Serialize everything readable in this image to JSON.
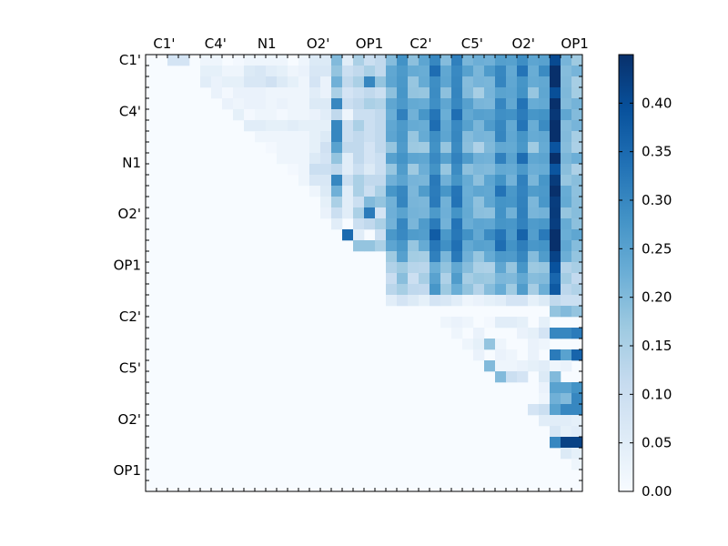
{
  "chart_data": {
    "type": "heatmap",
    "title": "",
    "xlabel": "",
    "ylabel": "",
    "colormap": "Blues",
    "colormap_min_color": "#f7fbff",
    "colormap_max_color": "#08306b",
    "x_tick_labels": [
      "C1'",
      "C4'",
      "N1",
      "O2'",
      "OP1",
      "C2'",
      "C5'",
      "O2'",
      "OP1"
    ],
    "y_tick_labels": [
      "C1'",
      "C4'",
      "N1",
      "O2'",
      "OP1",
      "C2'",
      "C5'",
      "O2'",
      "OP1"
    ],
    "tick_label_position": "top",
    "colorbar": {
      "min": 0.0,
      "max": 0.45,
      "tick_labels": [
        "0.00",
        "0.05",
        "0.10",
        "0.15",
        "0.20",
        "0.25",
        "0.30",
        "0.35",
        "0.40"
      ]
    },
    "n_rows": 40,
    "n_cols": 40,
    "values_note_units": "value",
    "sections": {
      "upper_left_block": {
        "rows": [
          0,
          17
        ],
        "cols": [
          1,
          16
        ],
        "values": [
          [
            0.0,
            0.08,
            0.08,
            0.0,
            0.02,
            0.02,
            0.0,
            0.01,
            0.02,
            0.02,
            0.02,
            0.02,
            0.0,
            0.02,
            0.06,
            0.06
          ],
          [
            0.0,
            0.0,
            0.0,
            0.0,
            0.04,
            0.04,
            0.02,
            0.02,
            0.06,
            0.07,
            0.05,
            0.04,
            0.02,
            0.03,
            0.07,
            0.07
          ],
          [
            0.0,
            0.0,
            0.0,
            0.0,
            0.05,
            0.03,
            0.04,
            0.04,
            0.07,
            0.07,
            0.09,
            0.06,
            0.04,
            0.02,
            0.08,
            0.03
          ],
          [
            0.0,
            0.0,
            0.0,
            0.0,
            0.0,
            0.03,
            0.01,
            0.03,
            0.03,
            0.03,
            0.02,
            0.02,
            0.02,
            0.02,
            0.05,
            0.03
          ],
          [
            0.0,
            0.0,
            0.0,
            0.0,
            0.0,
            0.0,
            0.03,
            0.02,
            0.03,
            0.03,
            0.02,
            0.03,
            0.02,
            0.02,
            0.06,
            0.06
          ],
          [
            0.0,
            0.0,
            0.0,
            0.0,
            0.0,
            0.0,
            0.0,
            0.04,
            0.01,
            0.02,
            0.02,
            0.01,
            0.02,
            0.02,
            0.03,
            0.05
          ],
          [
            0.0,
            0.0,
            0.0,
            0.0,
            0.0,
            0.0,
            0.0,
            0.0,
            0.05,
            0.05,
            0.04,
            0.04,
            0.05,
            0.04,
            0.04,
            0.04
          ],
          [
            0.0,
            0.0,
            0.0,
            0.0,
            0.0,
            0.0,
            0.0,
            0.0,
            0.0,
            0.02,
            0.02,
            0.02,
            0.02,
            0.02,
            0.04,
            0.06
          ],
          [
            0.0,
            0.0,
            0.0,
            0.0,
            0.0,
            0.0,
            0.0,
            0.0,
            0.0,
            0.0,
            0.01,
            0.02,
            0.02,
            0.02,
            0.04,
            0.09
          ],
          [
            0.0,
            0.0,
            0.0,
            0.0,
            0.0,
            0.0,
            0.0,
            0.0,
            0.0,
            0.0,
            0.0,
            0.02,
            0.02,
            0.02,
            0.06,
            0.08
          ],
          [
            0.0,
            0.0,
            0.0,
            0.0,
            0.0,
            0.0,
            0.0,
            0.0,
            0.0,
            0.0,
            0.0,
            0.0,
            0.01,
            0.02,
            0.1,
            0.1
          ],
          [
            0.0,
            0.0,
            0.0,
            0.0,
            0.0,
            0.0,
            0.0,
            0.0,
            0.0,
            0.0,
            0.0,
            0.0,
            0.0,
            0.02,
            0.07,
            0.07
          ],
          [
            0.0,
            0.0,
            0.0,
            0.0,
            0.0,
            0.0,
            0.0,
            0.0,
            0.0,
            0.0,
            0.0,
            0.0,
            0.0,
            0.0,
            0.02,
            0.06
          ],
          [
            0.0,
            0.0,
            0.0,
            0.0,
            0.0,
            0.0,
            0.0,
            0.0,
            0.0,
            0.0,
            0.0,
            0.0,
            0.0,
            0.0,
            0.0,
            0.04
          ],
          [
            0.0,
            0.0,
            0.0,
            0.0,
            0.0,
            0.0,
            0.0,
            0.0,
            0.0,
            0.0,
            0.0,
            0.0,
            0.0,
            0.0,
            0.0,
            0.03
          ],
          [
            0.0,
            0.0,
            0.0,
            0.0,
            0.0,
            0.0,
            0.0,
            0.0,
            0.0,
            0.0,
            0.0,
            0.0,
            0.0,
            0.0,
            0.0,
            0.0
          ],
          [
            0.0,
            0.0,
            0.0,
            0.0,
            0.0,
            0.0,
            0.0,
            0.0,
            0.0,
            0.0,
            0.0,
            0.0,
            0.0,
            0.0,
            0.0,
            0.0
          ]
        ]
      },
      "op1_band": {
        "rows": [
          0,
          20
        ],
        "cols": [
          17,
          21
        ],
        "values": [
          [
            0.2,
            0.05,
            0.15,
            0.1,
            0.12
          ],
          [
            0.18,
            0.1,
            0.12,
            0.15,
            0.12
          ],
          [
            0.22,
            0.12,
            0.15,
            0.3,
            0.18
          ],
          [
            0.15,
            0.08,
            0.1,
            0.12,
            0.1
          ],
          [
            0.3,
            0.1,
            0.12,
            0.15,
            0.14
          ],
          [
            0.12,
            0.02,
            0.1,
            0.1,
            0.12
          ],
          [
            0.3,
            0.1,
            0.15,
            0.1,
            0.12
          ],
          [
            0.3,
            0.1,
            0.12,
            0.1,
            0.12
          ],
          [
            0.25,
            0.12,
            0.12,
            0.08,
            0.12
          ],
          [
            0.18,
            0.05,
            0.12,
            0.08,
            0.1
          ],
          [
            0.12,
            0.05,
            0.1,
            0.06,
            0.1
          ],
          [
            0.3,
            0.1,
            0.15,
            0.12,
            0.12
          ],
          [
            0.22,
            0.05,
            0.15,
            0.1,
            0.15
          ],
          [
            0.15,
            0.05,
            0.1,
            0.2,
            0.18
          ],
          [
            0.1,
            0.05,
            0.15,
            0.32,
            0.08
          ],
          [
            0.05,
            0.0,
            0.1,
            0.12,
            0.15
          ],
          [
            0.0,
            0.35,
            0.05,
            0.0,
            0.1
          ],
          [
            0.0,
            0.0,
            0.18,
            0.18,
            0.15
          ],
          [
            0.0,
            0.0,
            0.0,
            0.0,
            0.0
          ],
          [
            0.0,
            0.0,
            0.0,
            0.0,
            0.0
          ]
        ]
      },
      "upper_right_block": {
        "rows": [
          0,
          22
        ],
        "cols": [
          22,
          39
        ],
        "column_means": [
          0.22,
          0.27,
          0.2,
          0.22,
          0.3,
          0.22,
          0.3,
          0.22,
          0.2,
          0.22,
          0.28,
          0.24,
          0.3,
          0.22,
          0.25,
          0.43,
          0.2,
          0.18
        ],
        "row_offsets": [
          0.0,
          0.02,
          0.0,
          -0.02,
          0.01,
          0.03,
          0.02,
          0.0,
          -0.03,
          0.02,
          -0.02,
          0.0,
          0.03,
          0.01,
          -0.01,
          0.02,
          0.05,
          0.04,
          0.0,
          -0.05,
          -0.05,
          -0.05
        ]
      },
      "lower_right_panel": {
        "rows": [
          22,
          39
        ],
        "cols": [
          22,
          39
        ],
        "values": [
          [
            0.05,
            0.08,
            0.06,
            0.04,
            0.08,
            0.07,
            0.05,
            0.02,
            0.03,
            0.04,
            0.05,
            0.08,
            0.08,
            0.04,
            0.06,
            0.12,
            0.1,
            0.1
          ],
          [
            0.0,
            0.0,
            0.0,
            0.0,
            0.0,
            0.0,
            0.0,
            0.0,
            0.0,
            0.0,
            0.0,
            0.0,
            0.0,
            0.0,
            0.0,
            0.18,
            0.2,
            0.18
          ],
          [
            0.0,
            0.0,
            0.0,
            0.0,
            0.0,
            0.02,
            0.03,
            0.02,
            0.0,
            0.01,
            0.05,
            0.05,
            0.04,
            0.0,
            0.04,
            0.0,
            0.0,
            0.0
          ],
          [
            0.0,
            0.0,
            0.0,
            0.0,
            0.0,
            0.0,
            0.02,
            0.0,
            0.03,
            0.0,
            0.0,
            0.0,
            0.03,
            0.04,
            0.08,
            0.3,
            0.3,
            0.32
          ],
          [
            0.0,
            0.0,
            0.0,
            0.0,
            0.0,
            0.0,
            0.0,
            0.02,
            0.04,
            0.18,
            0.02,
            0.0,
            0.0,
            0.03,
            0.02,
            0.0,
            0.0,
            0.0
          ],
          [
            0.0,
            0.0,
            0.0,
            0.0,
            0.0,
            0.0,
            0.0,
            0.0,
            0.03,
            0.0,
            0.03,
            0.02,
            0.0,
            0.03,
            0.0,
            0.32,
            0.25,
            0.36
          ],
          [
            0.0,
            0.0,
            0.0,
            0.0,
            0.0,
            0.0,
            0.0,
            0.0,
            0.0,
            0.2,
            0.02,
            0.02,
            0.03,
            0.04,
            0.05,
            0.02,
            0.03,
            0.0
          ],
          [
            0.0,
            0.0,
            0.0,
            0.0,
            0.0,
            0.0,
            0.0,
            0.0,
            0.0,
            0.0,
            0.2,
            0.1,
            0.08,
            0.0,
            0.06,
            0.2,
            0.0,
            0.0
          ],
          [
            0.0,
            0.0,
            0.0,
            0.0,
            0.0,
            0.0,
            0.0,
            0.0,
            0.0,
            0.0,
            0.0,
            0.0,
            0.0,
            0.0,
            0.03,
            0.25,
            0.25,
            0.28
          ],
          [
            0.0,
            0.0,
            0.0,
            0.0,
            0.0,
            0.0,
            0.0,
            0.0,
            0.0,
            0.0,
            0.0,
            0.0,
            0.0,
            0.0,
            0.02,
            0.22,
            0.2,
            0.3
          ],
          [
            0.0,
            0.0,
            0.0,
            0.0,
            0.0,
            0.0,
            0.0,
            0.0,
            0.0,
            0.0,
            0.0,
            0.0,
            0.0,
            0.08,
            0.1,
            0.25,
            0.3,
            0.3
          ],
          [
            0.0,
            0.0,
            0.0,
            0.0,
            0.0,
            0.0,
            0.0,
            0.0,
            0.0,
            0.0,
            0.0,
            0.0,
            0.0,
            0.0,
            0.05,
            0.05,
            0.05,
            0.04
          ],
          [
            0.0,
            0.0,
            0.0,
            0.0,
            0.0,
            0.0,
            0.0,
            0.0,
            0.0,
            0.0,
            0.0,
            0.0,
            0.0,
            0.0,
            0.0,
            0.07,
            0.04,
            0.05
          ],
          [
            0.0,
            0.0,
            0.0,
            0.0,
            0.0,
            0.0,
            0.0,
            0.0,
            0.0,
            0.0,
            0.0,
            0.0,
            0.0,
            0.0,
            0.0,
            0.3,
            0.42,
            0.42
          ],
          [
            0.0,
            0.0,
            0.0,
            0.0,
            0.0,
            0.0,
            0.0,
            0.0,
            0.0,
            0.0,
            0.0,
            0.0,
            0.0,
            0.0,
            0.0,
            0.0,
            0.06,
            0.04
          ],
          [
            0.0,
            0.0,
            0.0,
            0.0,
            0.0,
            0.0,
            0.0,
            0.0,
            0.0,
            0.0,
            0.0,
            0.0,
            0.0,
            0.0,
            0.0,
            0.0,
            0.0,
            0.02
          ],
          [
            0.0,
            0.0,
            0.0,
            0.0,
            0.0,
            0.0,
            0.0,
            0.0,
            0.0,
            0.0,
            0.0,
            0.0,
            0.0,
            0.0,
            0.0,
            0.0,
            0.0,
            0.0
          ]
        ]
      }
    }
  }
}
